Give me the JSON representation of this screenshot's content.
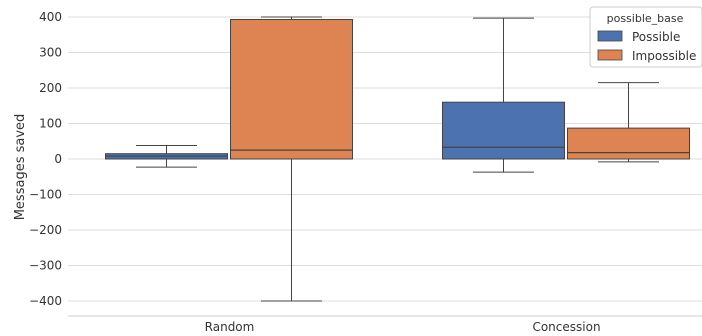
{
  "chart_data": {
    "type": "box",
    "title": "",
    "ylabel": "Messages saved",
    "xlabel": "",
    "ylim": [
      -440,
      420
    ],
    "yticks": [
      400,
      300,
      200,
      100,
      0,
      -100,
      -200,
      -300,
      -400
    ],
    "ytick_labels": [
      "400",
      "300",
      "200",
      "100",
      "0",
      "−100",
      "−200",
      "−300",
      "−400"
    ],
    "categories": [
      "Random",
      "Concession"
    ],
    "grid": true,
    "legend": {
      "title": "possible_base",
      "placement": "top-right",
      "entries": [
        "Possible",
        "Impossible"
      ]
    },
    "series": [
      {
        "name": "Possible",
        "color": "#4c72b0",
        "boxes": [
          {
            "category": "Random",
            "whisker_low": -23,
            "q1": 0,
            "median": 8,
            "q3": 15,
            "whisker_high": 38
          },
          {
            "category": "Concession",
            "whisker_low": -37,
            "q1": 0,
            "median": 33,
            "q3": 160,
            "whisker_high": 397
          }
        ]
      },
      {
        "name": "Impossible",
        "color": "#dd8452",
        "boxes": [
          {
            "category": "Random",
            "whisker_low": -400,
            "q1": 0,
            "median": 25,
            "q3": 393,
            "whisker_high": 400
          },
          {
            "category": "Concession",
            "whisker_low": -8,
            "q1": 0,
            "median": 18,
            "q3": 87,
            "whisker_high": 215
          }
        ]
      }
    ]
  }
}
